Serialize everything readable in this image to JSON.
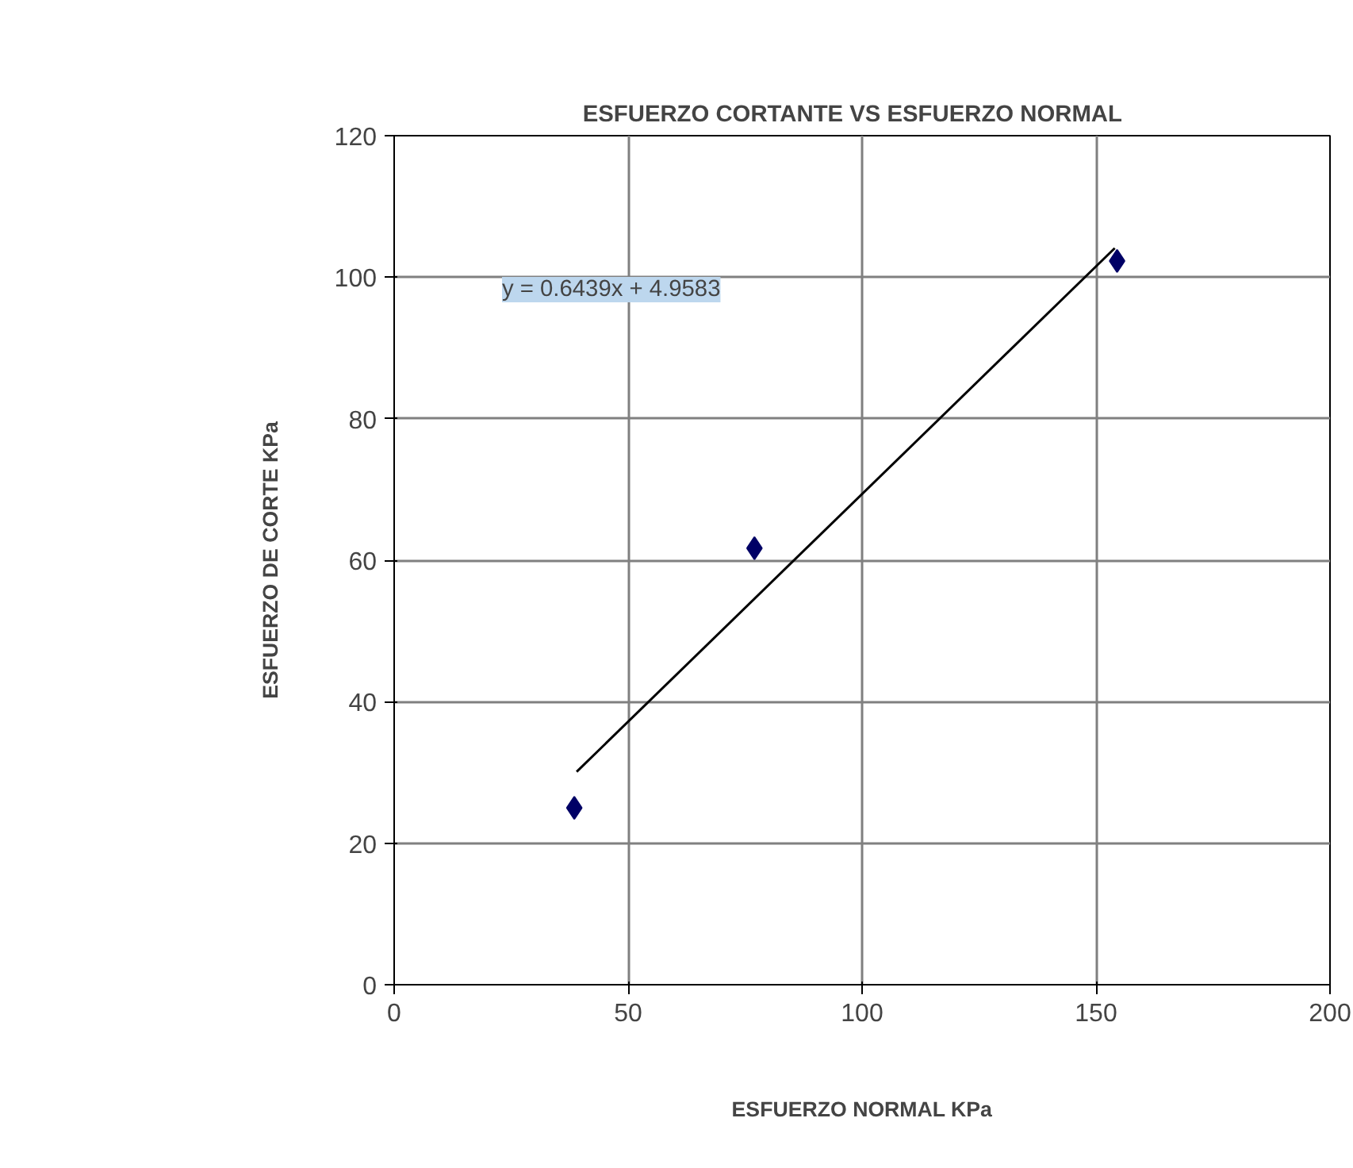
{
  "chart_data": {
    "type": "scatter",
    "title": "ESFUERZO CORTANTE  VS   ESFUERZO NORMAL",
    "xlabel": "ESFUERZO NORMAL KPa",
    "ylabel": "ESFUERZO DE CORTE KPa",
    "annotations": [
      "y = 0.6439x + 4.9583"
    ],
    "xlim": [
      0,
      200
    ],
    "ylim": [
      0,
      120
    ],
    "xticks": [
      0,
      50,
      100,
      150,
      200
    ],
    "yticks": [
      0,
      20,
      40,
      60,
      80,
      100,
      120
    ],
    "grid": true,
    "series": [
      {
        "color": "#000066",
        "marker": "diamond",
        "x": [
          38.5,
          77,
          154.5
        ],
        "values": [
          25,
          61.7,
          102.3
        ]
      },
      {
        "type": "line",
        "color": "#000000",
        "marker": "none",
        "line_style": "solid",
        "x": [
          39,
          154
        ],
        "values": [
          30.1,
          104.1
        ]
      }
    ]
  }
}
